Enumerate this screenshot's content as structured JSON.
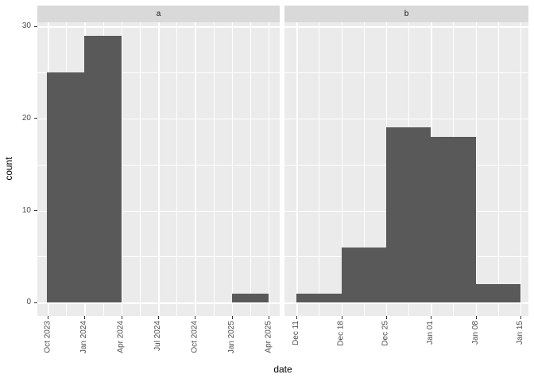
{
  "chart_data": {
    "type": "histogram",
    "title": "",
    "xlabel": "date",
    "ylabel": "count",
    "legend": "none",
    "grid": "on",
    "y_ticks": [
      0,
      10,
      20,
      30
    ],
    "y_minor_breaks": [
      5,
      15,
      25
    ],
    "y_domain": [
      -1.45,
      30.45
    ],
    "facets": [
      {
        "label": "a",
        "x_unit": "months from Oct 2023",
        "x_domain": [
          -0.85,
          18.9
        ],
        "x_ticks": [
          {
            "pos": 0,
            "label": "Oct 2023"
          },
          {
            "pos": 3,
            "label": "Jan 2024"
          },
          {
            "pos": 6,
            "label": "Apr 2024"
          },
          {
            "pos": 9,
            "label": "Jul 2024"
          },
          {
            "pos": 12,
            "label": "Oct 2024"
          },
          {
            "pos": 15,
            "label": "Jan 2025"
          },
          {
            "pos": 18,
            "label": "Apr 2025"
          }
        ],
        "x_minor_breaks": [
          1.5,
          4.5,
          7.5,
          10.5,
          13.5,
          16.5
        ],
        "bars": [
          {
            "x0": -0.1,
            "x1": 3,
            "count": 25
          },
          {
            "x0": 3,
            "x1": 6,
            "count": 29
          },
          {
            "x0": 15,
            "x1": 18,
            "count": 1
          }
        ]
      },
      {
        "label": "b",
        "x_unit": "days from Dec 11",
        "x_domain": [
          -1.9,
          36.25
        ],
        "x_ticks": [
          {
            "pos": 0,
            "label": "Dec 11"
          },
          {
            "pos": 7,
            "label": "Dec 18"
          },
          {
            "pos": 14,
            "label": "Dec 25"
          },
          {
            "pos": 21,
            "label": "Jan 01"
          },
          {
            "pos": 28,
            "label": "Jan 08"
          },
          {
            "pos": 35,
            "label": "Jan 15"
          }
        ],
        "x_minor_breaks": [
          3.5,
          10.5,
          17.5,
          24.5,
          31.5
        ],
        "bars": [
          {
            "x0": 0,
            "x1": 7,
            "count": 1
          },
          {
            "x0": 7,
            "x1": 14,
            "count": 6
          },
          {
            "x0": 14,
            "x1": 21,
            "count": 19
          },
          {
            "x0": 21,
            "x1": 28,
            "count": 18
          },
          {
            "x0": 28,
            "x1": 35,
            "count": 2
          }
        ]
      }
    ],
    "colors": {
      "bar_fill": "#595959",
      "panel_background": "#EBEBEB",
      "strip_background": "#D9D9D9",
      "gridline": "#FFFFFF",
      "tick_label": "#4D4D4D",
      "strip_text": "#1A1A1A",
      "axis_title": "#000000",
      "tick_mark": "#333333",
      "figure_background": "#FFFFFF"
    }
  }
}
